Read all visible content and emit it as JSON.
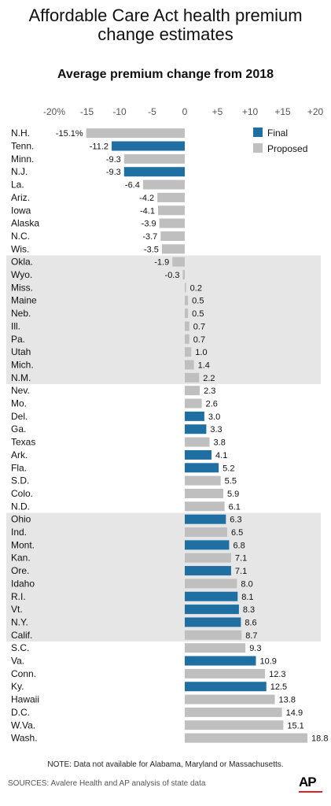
{
  "title_line1": "Affordable Care Act health premium",
  "title_line2": "change estimates",
  "chart_data": {
    "type": "bar",
    "orientation": "horizontal",
    "title": "Average premium change from 2018",
    "xlim": [
      -20,
      20
    ],
    "xticks": [
      "-20%",
      "-15",
      "-10",
      "-5",
      "0",
      "+5",
      "+10",
      "+15",
      "+20"
    ],
    "xtick_values": [
      -20,
      -15,
      -10,
      -5,
      0,
      5,
      10,
      15,
      20
    ],
    "legend": {
      "placement": "top-right",
      "entries": [
        {
          "name": "Final",
          "color": "#1f6fa3"
        },
        {
          "name": "Proposed",
          "color": "#bfbfbf"
        }
      ]
    },
    "bars": [
      {
        "state": "N.H.",
        "value": -15.1,
        "label": "-15.1%",
        "type": "Proposed"
      },
      {
        "state": "Tenn.",
        "value": -11.2,
        "label": "-11.2",
        "type": "Final"
      },
      {
        "state": "Minn.",
        "value": -9.3,
        "label": "-9.3",
        "type": "Proposed"
      },
      {
        "state": "N.J.",
        "value": -9.3,
        "label": "-9.3",
        "type": "Final"
      },
      {
        "state": "La.",
        "value": -6.4,
        "label": "-6.4",
        "type": "Proposed"
      },
      {
        "state": "Ariz.",
        "value": -4.2,
        "label": "-4.2",
        "type": "Proposed"
      },
      {
        "state": "Iowa",
        "value": -4.1,
        "label": "-4.1",
        "type": "Proposed"
      },
      {
        "state": "Alaska",
        "value": -3.9,
        "label": "-3.9",
        "type": "Proposed"
      },
      {
        "state": "N.C.",
        "value": -3.7,
        "label": "-3.7",
        "type": "Proposed"
      },
      {
        "state": "Wis.",
        "value": -3.5,
        "label": "-3.5",
        "type": "Proposed"
      },
      {
        "state": "Okla.",
        "value": -1.9,
        "label": "-1.9",
        "type": "Proposed"
      },
      {
        "state": "Wyo.",
        "value": -0.3,
        "label": "-0.3",
        "type": "Proposed"
      },
      {
        "state": "Miss.",
        "value": 0.2,
        "label": "0.2",
        "type": "Proposed"
      },
      {
        "state": "Maine",
        "value": 0.5,
        "label": "0.5",
        "type": "Proposed"
      },
      {
        "state": "Neb.",
        "value": 0.5,
        "label": "0.5",
        "type": "Proposed"
      },
      {
        "state": "Ill.",
        "value": 0.7,
        "label": "0.7",
        "type": "Proposed"
      },
      {
        "state": "Pa.",
        "value": 0.7,
        "label": "0.7",
        "type": "Proposed"
      },
      {
        "state": "Utah",
        "value": 1.0,
        "label": "1.0",
        "type": "Proposed"
      },
      {
        "state": "Mich.",
        "value": 1.4,
        "label": "1.4",
        "type": "Proposed"
      },
      {
        "state": "N.M.",
        "value": 2.2,
        "label": "2.2",
        "type": "Proposed"
      },
      {
        "state": "Nev.",
        "value": 2.3,
        "label": "2.3",
        "type": "Proposed"
      },
      {
        "state": "Mo.",
        "value": 2.6,
        "label": "2.6",
        "type": "Proposed"
      },
      {
        "state": "Del.",
        "value": 3.0,
        "label": "3.0",
        "type": "Final"
      },
      {
        "state": "Ga.",
        "value": 3.3,
        "label": "3.3",
        "type": "Final"
      },
      {
        "state": "Texas",
        "value": 3.8,
        "label": "3.8",
        "type": "Proposed"
      },
      {
        "state": "Ark.",
        "value": 4.1,
        "label": "4.1",
        "type": "Final"
      },
      {
        "state": "Fla.",
        "value": 5.2,
        "label": "5.2",
        "type": "Final"
      },
      {
        "state": "S.D.",
        "value": 5.5,
        "label": "5.5",
        "type": "Proposed"
      },
      {
        "state": "Colo.",
        "value": 5.9,
        "label": "5.9",
        "type": "Proposed"
      },
      {
        "state": "N.D.",
        "value": 6.1,
        "label": "6.1",
        "type": "Proposed"
      },
      {
        "state": "Ohio",
        "value": 6.3,
        "label": "6.3",
        "type": "Final"
      },
      {
        "state": "Ind.",
        "value": 6.5,
        "label": "6.5",
        "type": "Proposed"
      },
      {
        "state": "Mont.",
        "value": 6.8,
        "label": "6.8",
        "type": "Final"
      },
      {
        "state": "Kan.",
        "value": 7.1,
        "label": "7.1",
        "type": "Proposed"
      },
      {
        "state": "Ore.",
        "value": 7.1,
        "label": "7.1",
        "type": "Final"
      },
      {
        "state": "Idaho",
        "value": 8.0,
        "label": "8.0",
        "type": "Proposed"
      },
      {
        "state": "R.I.",
        "value": 8.1,
        "label": "8.1",
        "type": "Final"
      },
      {
        "state": "Vt.",
        "value": 8.3,
        "label": "8.3",
        "type": "Final"
      },
      {
        "state": "N.Y.",
        "value": 8.6,
        "label": "8.6",
        "type": "Final"
      },
      {
        "state": "Calif.",
        "value": 8.7,
        "label": "8.7",
        "type": "Proposed"
      },
      {
        "state": "S.C.",
        "value": 9.3,
        "label": "9.3",
        "type": "Proposed"
      },
      {
        "state": "Va.",
        "value": 10.9,
        "label": "10.9",
        "type": "Final"
      },
      {
        "state": "Conn.",
        "value": 12.3,
        "label": "12.3",
        "type": "Proposed"
      },
      {
        "state": "Ky.",
        "value": 12.5,
        "label": "12.5",
        "type": "Final"
      },
      {
        "state": "Hawaii",
        "value": 13.8,
        "label": "13.8",
        "type": "Proposed"
      },
      {
        "state": "D.C.",
        "value": 14.9,
        "label": "14.9",
        "type": "Proposed"
      },
      {
        "state": "W.Va.",
        "value": 15.1,
        "label": "15.1",
        "type": "Proposed"
      },
      {
        "state": "Wash.",
        "value": 18.8,
        "label": "18.8",
        "type": "Proposed"
      }
    ],
    "shaded_groups": [
      [
        10,
        19
      ],
      [
        30,
        39
      ]
    ],
    "shade_color": "#e6e6e6"
  },
  "note": "NOTE: Data not available for Alabama, Maryland or Massachusetts.",
  "sources": "SOURCES: Avalere Health and AP analysis of state data",
  "logo_text": "AP"
}
